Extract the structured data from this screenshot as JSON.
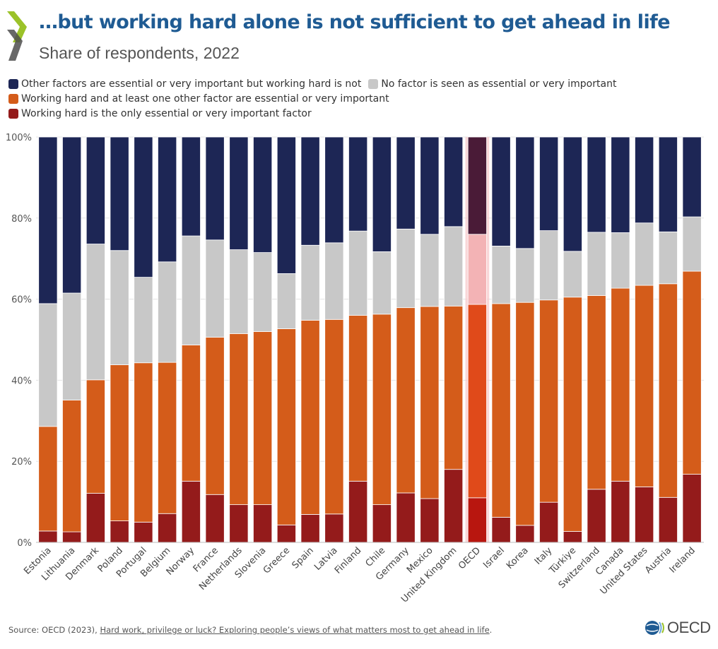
{
  "header": {
    "title": "…but working hard alone is not sufficient to get ahead in life",
    "subtitle": "Share of respondents, 2022"
  },
  "legend": {
    "rows": [
      [
        {
          "label": "Other factors are essential or very important but working hard is not",
          "color": "#1d2655"
        },
        {
          "label": "No factor is seen as essential or very important",
          "color": "#c8c8c8"
        }
      ],
      [
        {
          "label": "Working hard and at least one other factor are essential or very important",
          "color": "#d45c1a"
        }
      ],
      [
        {
          "label": "Working hard is the only essential or very important factor",
          "color": "#941b1b"
        }
      ]
    ]
  },
  "chart_data": {
    "type": "bar",
    "stacked": true,
    "title": "",
    "xlabel": "",
    "ylabel": "",
    "ylim": [
      0,
      100
    ],
    "yticks": [
      0,
      20,
      40,
      60,
      80,
      100
    ],
    "ytick_suffix": "%",
    "grid": true,
    "legend_position": "top",
    "highlight_category": "OECD",
    "categories": [
      "Estonia",
      "Lithuania",
      "Denmark",
      "Poland",
      "Portugal",
      "Belgium",
      "Norway",
      "France",
      "Netherlands",
      "Slovenia",
      "Greece",
      "Spain",
      "Latvia",
      "Finland",
      "Chile",
      "Germany",
      "Mexico",
      "United Kingdom",
      "OECD",
      "Israel",
      "Korea",
      "Italy",
      "Türkiye",
      "Switzerland",
      "Canada",
      "United States",
      "Austria",
      "Ireland"
    ],
    "series": [
      {
        "name": "Working hard is the only essential or very important factor",
        "color": "#941b1b",
        "highlight_color": "#b8160f",
        "values": [
          2.8,
          2.6,
          12.1,
          5.3,
          5.0,
          7.1,
          15.1,
          11.8,
          9.3,
          9.3,
          4.3,
          6.9,
          7.0,
          15.1,
          9.3,
          12.2,
          10.8,
          18.0,
          11.0,
          6.2,
          4.2,
          9.9,
          2.7,
          13.1,
          15.1,
          13.7,
          11.1,
          16.8
        ]
      },
      {
        "name": "Working hard and at least one other factor are essential or very important",
        "color": "#d45c1a",
        "highlight_color": "#e04a1a",
        "values": [
          25.8,
          32.5,
          28.0,
          38.5,
          39.3,
          37.3,
          33.6,
          38.8,
          42.2,
          42.7,
          48.4,
          47.9,
          48.0,
          40.9,
          47.0,
          45.7,
          47.4,
          40.3,
          47.7,
          52.7,
          55.0,
          49.9,
          57.8,
          47.8,
          47.6,
          49.7,
          52.7,
          50.1
        ]
      },
      {
        "name": "No factor is seen as essential or very important",
        "color": "#c8c8c8",
        "highlight_color": "#f3b3b5",
        "values": [
          30.3,
          26.4,
          33.5,
          28.2,
          21.1,
          24.8,
          26.9,
          24.0,
          20.7,
          19.5,
          13.6,
          18.5,
          18.9,
          20.8,
          15.4,
          19.4,
          17.8,
          19.6,
          17.3,
          14.2,
          13.3,
          17.1,
          11.3,
          15.6,
          13.7,
          15.4,
          12.8,
          13.4
        ]
      },
      {
        "name": "Other factors are essential or very important but working hard is not",
        "color": "#1d2655",
        "highlight_color": "#4a1b37",
        "values": [
          41.1,
          38.5,
          26.4,
          28.0,
          34.6,
          30.8,
          24.4,
          25.4,
          27.8,
          28.5,
          33.7,
          26.7,
          26.1,
          23.2,
          28.3,
          22.7,
          24.0,
          22.1,
          24.0,
          26.9,
          27.5,
          23.1,
          28.2,
          23.5,
          23.6,
          21.2,
          23.4,
          19.7
        ]
      }
    ]
  },
  "footer": {
    "source_prefix": "Source: OECD (2023), ",
    "source_link": "Hard work, privilege or luck? Exploring people’s views of what matters most to get ahead in life",
    "source_suffix": ".",
    "logo_text": "OECD"
  }
}
